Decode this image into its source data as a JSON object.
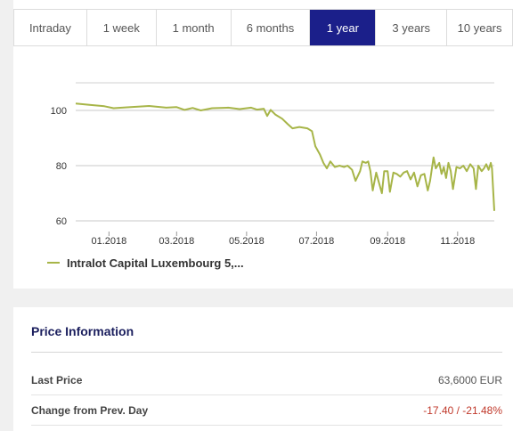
{
  "tabs": [
    {
      "label": "Intraday",
      "active": false
    },
    {
      "label": "1 week",
      "active": false
    },
    {
      "label": "1 month",
      "active": false
    },
    {
      "label": "6 months",
      "active": false
    },
    {
      "label": "1 year",
      "active": true
    },
    {
      "label": "3 years",
      "active": false
    },
    {
      "label": "10 years",
      "active": false
    }
  ],
  "colors": {
    "active_tab": "#1b1f8a",
    "series_line": "#a7b548",
    "negative": "#c0392b"
  },
  "chart_data": {
    "type": "line",
    "title": "",
    "xlabel": "",
    "ylabel": "",
    "ylim": [
      60,
      110
    ],
    "x_range": [
      "2017-12-03",
      "2018-12-03"
    ],
    "yticks": [
      60,
      80,
      100
    ],
    "xticks": [
      {
        "date": "2018-01-01",
        "label": "01.2018"
      },
      {
        "date": "2018-03-01",
        "label": "03.2018"
      },
      {
        "date": "2018-05-01",
        "label": "05.2018"
      },
      {
        "date": "2018-07-01",
        "label": "07.2018"
      },
      {
        "date": "2018-09-01",
        "label": "09.2018"
      },
      {
        "date": "2018-11-01",
        "label": "11.2018"
      }
    ],
    "grid": true,
    "legend_position": "bottom-left",
    "series": [
      {
        "name": "Intralot Capital Luxembourg 5,...",
        "points": [
          [
            "2017-12-03",
            102.5
          ],
          [
            "2017-12-15",
            102.0
          ],
          [
            "2017-12-28",
            101.5
          ],
          [
            "2018-01-05",
            100.8
          ],
          [
            "2018-01-20",
            101.2
          ],
          [
            "2018-02-05",
            101.6
          ],
          [
            "2018-02-20",
            101.0
          ],
          [
            "2018-03-01",
            101.2
          ],
          [
            "2018-03-08",
            100.2
          ],
          [
            "2018-03-15",
            100.9
          ],
          [
            "2018-03-22",
            100.0
          ],
          [
            "2018-04-01",
            100.8
          ],
          [
            "2018-04-15",
            101.0
          ],
          [
            "2018-04-25",
            100.5
          ],
          [
            "2018-05-05",
            101.0
          ],
          [
            "2018-05-10",
            100.3
          ],
          [
            "2018-05-16",
            100.6
          ],
          [
            "2018-05-19",
            98.0
          ],
          [
            "2018-05-22",
            100.2
          ],
          [
            "2018-05-26",
            98.5
          ],
          [
            "2018-06-01",
            97.0
          ],
          [
            "2018-06-06",
            95.0
          ],
          [
            "2018-06-10",
            93.5
          ],
          [
            "2018-06-16",
            94.0
          ],
          [
            "2018-06-23",
            93.5
          ],
          [
            "2018-06-27",
            92.5
          ],
          [
            "2018-06-30",
            87.0
          ],
          [
            "2018-07-04",
            84.0
          ],
          [
            "2018-07-07",
            81.0
          ],
          [
            "2018-07-10",
            79.0
          ],
          [
            "2018-07-13",
            81.5
          ],
          [
            "2018-07-17",
            79.5
          ],
          [
            "2018-07-21",
            80.0
          ],
          [
            "2018-07-25",
            79.5
          ],
          [
            "2018-07-28",
            80.0
          ],
          [
            "2018-08-01",
            78.5
          ],
          [
            "2018-08-04",
            74.5
          ],
          [
            "2018-08-08",
            78.0
          ],
          [
            "2018-08-10",
            81.5
          ],
          [
            "2018-08-13",
            81.0
          ],
          [
            "2018-08-15",
            81.5
          ],
          [
            "2018-08-17",
            78.0
          ],
          [
            "2018-08-19",
            71.0
          ],
          [
            "2018-08-22",
            77.5
          ],
          [
            "2018-08-25",
            73.0
          ],
          [
            "2018-08-27",
            70.0
          ],
          [
            "2018-08-29",
            78.0
          ],
          [
            "2018-09-01",
            78.0
          ],
          [
            "2018-09-03",
            70.5
          ],
          [
            "2018-09-06",
            77.5
          ],
          [
            "2018-09-09",
            77.0
          ],
          [
            "2018-09-12",
            76.0
          ],
          [
            "2018-09-15",
            77.5
          ],
          [
            "2018-09-18",
            78.0
          ],
          [
            "2018-09-21",
            75.0
          ],
          [
            "2018-09-24",
            77.5
          ],
          [
            "2018-09-27",
            72.5
          ],
          [
            "2018-09-30",
            76.5
          ],
          [
            "2018-10-03",
            77.0
          ],
          [
            "2018-10-06",
            71.0
          ],
          [
            "2018-10-08",
            74.5
          ],
          [
            "2018-10-11",
            83.0
          ],
          [
            "2018-10-13",
            79.0
          ],
          [
            "2018-10-16",
            81.0
          ],
          [
            "2018-10-18",
            77.0
          ],
          [
            "2018-10-20",
            79.5
          ],
          [
            "2018-10-22",
            75.5
          ],
          [
            "2018-10-24",
            81.0
          ],
          [
            "2018-10-26",
            78.0
          ],
          [
            "2018-10-28",
            71.5
          ],
          [
            "2018-10-31",
            79.5
          ],
          [
            "2018-11-03",
            79.0
          ],
          [
            "2018-11-06",
            80.0
          ],
          [
            "2018-11-09",
            78.0
          ],
          [
            "2018-11-12",
            80.5
          ],
          [
            "2018-11-15",
            79.0
          ],
          [
            "2018-11-17",
            71.5
          ],
          [
            "2018-11-19",
            80.0
          ],
          [
            "2018-11-22",
            78.0
          ],
          [
            "2018-11-24",
            79.0
          ],
          [
            "2018-11-26",
            80.5
          ],
          [
            "2018-11-28",
            78.5
          ],
          [
            "2018-11-30",
            81.0
          ],
          [
            "2018-12-01",
            79.0
          ],
          [
            "2018-12-03",
            63.6
          ]
        ]
      }
    ]
  },
  "price_info": {
    "title": "Price Information",
    "rows": [
      {
        "label": "Last Price",
        "value": "63,6000 EUR",
        "negative": false
      },
      {
        "label": "Change from Prev. Day",
        "value": "-17.40 / -21.48%",
        "negative": true
      }
    ]
  }
}
